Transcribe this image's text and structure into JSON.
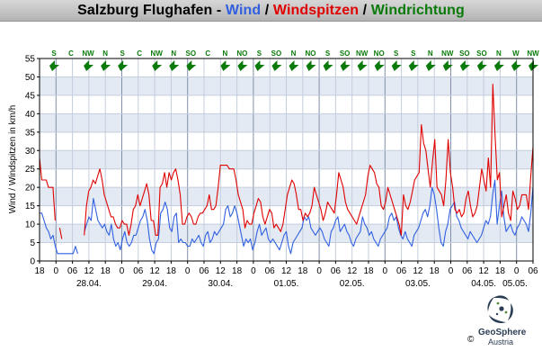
{
  "title": {
    "station": "Salzburg Flughafen",
    "sep1": " - ",
    "wind": "Wind",
    "sep2": " / ",
    "gust": "Windspitzen",
    "sep3": " / ",
    "direction": "Windrichtung"
  },
  "colors": {
    "wind": "#3060e0",
    "gust": "#e00000",
    "direction": "#0a7a0a",
    "band_light": "#ffffff",
    "band_shade": "#e4eaf4"
  },
  "logo": {
    "name": "GeoSphere",
    "sub": "Austria",
    "copyright": "©"
  },
  "chart_data": {
    "type": "line",
    "title": "Salzburg Flughafen - Wind / Windspitzen / Windrichtung",
    "ylabel": "Wind / Windspitzen in km/h",
    "xlabel": "",
    "ylim": [
      0,
      55
    ],
    "y_ticks": [
      0,
      5,
      10,
      15,
      20,
      25,
      30,
      35,
      40,
      45,
      50,
      55
    ],
    "x_hour_ticks": [
      "18",
      "0",
      "06",
      "12",
      "18",
      "0",
      "06",
      "12",
      "18",
      "0",
      "06",
      "12",
      "18",
      "0",
      "06",
      "12",
      "18",
      "0",
      "06",
      "12",
      "18",
      "0",
      "06",
      "12",
      "18",
      "0",
      "06",
      "12",
      "18",
      "0",
      "06"
    ],
    "x_date_labels": [
      "28.04.",
      "29.04.",
      "30.04.",
      "01.05.",
      "02.05.",
      "03.05.",
      "04.05.",
      "05.05."
    ],
    "grid": true,
    "direction_labels": [
      "S",
      "C",
      "NW",
      "N",
      "S",
      "C",
      "NW",
      "N",
      "SO",
      "C",
      "N",
      "NO",
      "S",
      "SO",
      "N",
      "NO",
      "S",
      "SO",
      "NW",
      "NO",
      "S",
      "S",
      "N",
      "NW",
      "SO",
      "SO",
      "N",
      "W",
      "NW"
    ],
    "series": [
      {
        "name": "Wind",
        "color": "#3060e0",
        "values": [
          13,
          13,
          11,
          9,
          8,
          6,
          7,
          4,
          2,
          2,
          2,
          2,
          2,
          2,
          2,
          2,
          4,
          2,
          null,
          null,
          8,
          10,
          12,
          11,
          17,
          14,
          11,
          10,
          9,
          10,
          8,
          7,
          10,
          6,
          4,
          5,
          3,
          6,
          8,
          5,
          4,
          5,
          7,
          7,
          9,
          11,
          12,
          14,
          11,
          6,
          3,
          2,
          5,
          6,
          13,
          14,
          16,
          14,
          9,
          8,
          12,
          13,
          5,
          6,
          5,
          5,
          4,
          4,
          6,
          5,
          6,
          7,
          5,
          4,
          7,
          8,
          5,
          6,
          8,
          7,
          8,
          9,
          10,
          14,
          15,
          12,
          13,
          15,
          13,
          10,
          7,
          4,
          6,
          5,
          6,
          3,
          5,
          8,
          10,
          7,
          8,
          9,
          6,
          5,
          6,
          5,
          4,
          3,
          5,
          7,
          8,
          4,
          2,
          5,
          6,
          7,
          8,
          9,
          12,
          11,
          12,
          9,
          8,
          7,
          8,
          9,
          8,
          6,
          5,
          4,
          8,
          9,
          11,
          12,
          8,
          9,
          10,
          8,
          7,
          5,
          4,
          6,
          7,
          8,
          12,
          10,
          9,
          7,
          8,
          6,
          5,
          4,
          6,
          7,
          8,
          9,
          12,
          13,
          11,
          12,
          9,
          7,
          6,
          8,
          6,
          5,
          4,
          7,
          8,
          9,
          11,
          13,
          14,
          12,
          15,
          20,
          18,
          14,
          9,
          5,
          4,
          8,
          10,
          14,
          15,
          16,
          12,
          11,
          9,
          8,
          7,
          6,
          8,
          7,
          6,
          5,
          6,
          7,
          9,
          11,
          10,
          12,
          18,
          22,
          10,
          15,
          19,
          12,
          8,
          9,
          10,
          8,
          7,
          9,
          10,
          12,
          11,
          10,
          8,
          13,
          20
        ]
      },
      {
        "name": "Windspitzen",
        "color": "#e00000",
        "values": [
          28,
          22,
          22,
          22,
          20,
          20,
          20,
          11,
          null,
          9,
          6,
          null,
          null,
          null,
          null,
          null,
          null,
          null,
          null,
          null,
          7,
          15,
          19,
          20,
          22,
          21,
          23,
          25,
          22,
          18,
          16,
          14,
          12,
          12,
          10,
          9,
          9,
          11,
          10,
          10,
          7,
          10,
          14,
          15,
          18,
          15,
          17,
          19,
          21,
          18,
          11,
          11,
          7,
          7,
          20,
          21,
          24,
          20,
          24,
          22,
          24,
          25,
          22,
          18,
          10,
          10,
          12,
          13,
          12,
          10,
          10,
          12,
          13,
          13,
          14,
          15,
          18,
          14,
          14,
          15,
          20,
          26,
          26,
          26,
          26,
          25,
          25,
          25,
          22,
          18,
          16,
          14,
          9,
          11,
          10,
          10,
          13,
          15,
          17,
          16,
          12,
          10,
          12,
          14,
          13,
          9,
          10,
          9,
          8,
          10,
          14,
          18,
          20,
          22,
          21,
          18,
          14,
          14,
          11,
          13,
          12,
          13,
          15,
          20,
          18,
          16,
          14,
          11,
          13,
          16,
          15,
          14,
          13,
          18,
          24,
          22,
          20,
          16,
          14,
          13,
          12,
          11,
          10,
          12,
          14,
          16,
          18,
          23,
          26,
          25,
          24,
          21,
          20,
          15,
          14,
          16,
          20,
          18,
          16,
          14,
          12,
          10,
          7,
          18,
          15,
          14,
          16,
          19,
          22,
          23,
          24,
          37,
          32,
          30,
          25,
          20,
          27,
          33,
          20,
          19,
          18,
          15,
          22,
          33,
          24,
          20,
          14,
          13,
          14,
          12,
          13,
          17,
          19,
          15,
          12,
          13,
          15,
          20,
          25,
          22,
          19,
          28,
          20,
          48,
          34,
          22,
          24,
          12,
          15,
          18,
          13,
          11,
          19,
          17,
          14,
          15,
          18,
          18,
          18,
          14,
          23,
          31
        ]
      }
    ]
  }
}
